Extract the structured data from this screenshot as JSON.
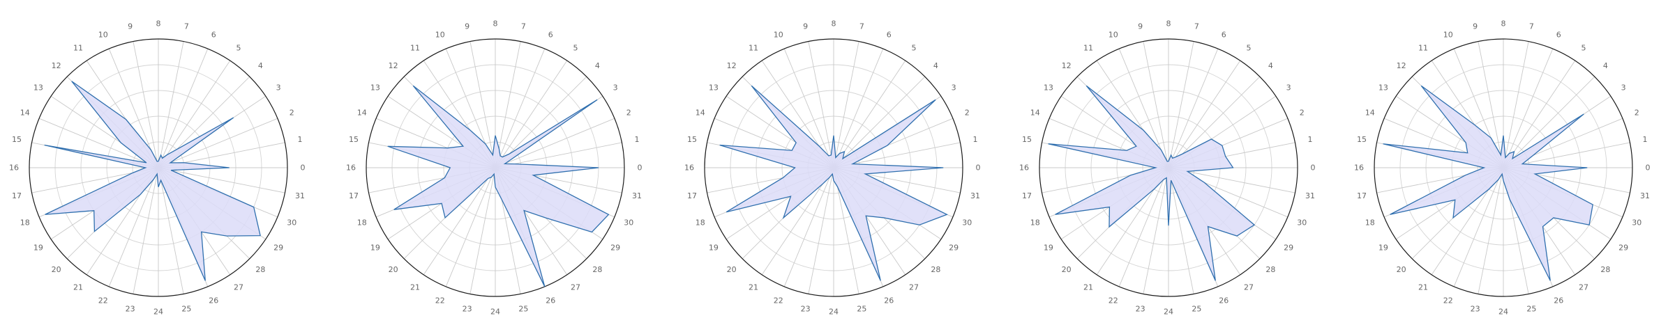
{
  "chart_data": [
    {
      "type": "radar",
      "categories": [
        "0",
        "1",
        "2",
        "3",
        "4",
        "5",
        "6",
        "7",
        "8",
        "9",
        "10",
        "11",
        "12",
        "13",
        "14",
        "15",
        "16",
        "17",
        "18",
        "19",
        "20",
        "21",
        "22",
        "23",
        "24",
        "25",
        "26",
        "27",
        "28",
        "29",
        "30",
        "31"
      ],
      "values": [
        0.55,
        0.2,
        0.1,
        0.7,
        0.2,
        0.12,
        0.08,
        0.1,
        0.05,
        0.05,
        0.15,
        0.45,
        0.95,
        0.35,
        0.1,
        0.9,
        0.1,
        0.2,
        0.95,
        0.6,
        0.7,
        0.25,
        0.1,
        0.05,
        0.15,
        0.1,
        0.95,
        0.6,
        0.75,
        0.95,
        0.8,
        0.1
      ],
      "rlim": [
        0,
        1
      ],
      "grid": true
    },
    {
      "type": "radar",
      "categories": [
        "0",
        "1",
        "2",
        "3",
        "4",
        "5",
        "6",
        "7",
        "8",
        "9",
        "10",
        "11",
        "12",
        "13",
        "14",
        "15",
        "16",
        "17",
        "18",
        "19",
        "20",
        "21",
        "22",
        "23",
        "24",
        "25",
        "26",
        "27",
        "28",
        "29",
        "30",
        "31"
      ],
      "values": [
        0.8,
        0.15,
        0.08,
        0.95,
        0.15,
        0.1,
        0.1,
        0.15,
        0.25,
        0.1,
        0.2,
        0.35,
        0.9,
        0.3,
        0.4,
        0.85,
        0.35,
        0.4,
        0.85,
        0.5,
        0.55,
        0.1,
        0.08,
        0.05,
        0.15,
        0.25,
        1.0,
        0.4,
        0.55,
        0.9,
        0.95,
        0.3
      ],
      "rlim": [
        0,
        1
      ],
      "grid": true
    },
    {
      "type": "radar",
      "categories": [
        "0",
        "1",
        "2",
        "3",
        "4",
        "5",
        "6",
        "7",
        "8",
        "9",
        "10",
        "11",
        "12",
        "13",
        "14",
        "15",
        "16",
        "17",
        "18",
        "19",
        "20",
        "21",
        "22",
        "23",
        "24",
        "25",
        "26",
        "27",
        "28",
        "29",
        "30",
        "31"
      ],
      "values": [
        0.85,
        0.15,
        0.45,
        0.95,
        0.1,
        0.15,
        0.12,
        0.08,
        0.25,
        0.1,
        0.1,
        0.2,
        0.9,
        0.35,
        0.35,
        0.9,
        0.3,
        0.4,
        0.9,
        0.4,
        0.55,
        0.15,
        0.08,
        0.05,
        0.1,
        0.15,
        0.95,
        0.45,
        0.55,
        0.8,
        0.95,
        0.25
      ],
      "rlim": [
        0,
        1
      ],
      "grid": true
    },
    {
      "type": "radar",
      "categories": [
        "0",
        "1",
        "2",
        "3",
        "4",
        "5",
        "6",
        "7",
        "8",
        "9",
        "10",
        "11",
        "12",
        "13",
        "14",
        "15",
        "16",
        "17",
        "18",
        "19",
        "20",
        "21",
        "22",
        "23",
        "24",
        "25",
        "26",
        "27",
        "28",
        "29",
        "30",
        "31"
      ],
      "values": [
        0.5,
        0.45,
        0.45,
        0.4,
        0.15,
        0.1,
        0.08,
        0.1,
        0.05,
        0.05,
        0.15,
        0.35,
        0.9,
        0.3,
        0.35,
        0.95,
        0.1,
        0.3,
        0.95,
        0.55,
        0.65,
        0.2,
        0.1,
        0.08,
        0.45,
        0.1,
        0.95,
        0.55,
        0.75,
        0.8,
        0.3,
        0.15
      ],
      "rlim": [
        0,
        1
      ],
      "grid": true
    },
    {
      "type": "radar",
      "categories": [
        "0",
        "1",
        "2",
        "3",
        "4",
        "5",
        "6",
        "7",
        "8",
        "9",
        "10",
        "11",
        "12",
        "13",
        "14",
        "15",
        "16",
        "17",
        "18",
        "19",
        "20",
        "21",
        "22",
        "23",
        "24",
        "25",
        "26",
        "27",
        "28",
        "29",
        "30",
        "31"
      ],
      "values": [
        0.65,
        0.15,
        0.25,
        0.75,
        0.1,
        0.15,
        0.12,
        0.08,
        0.25,
        0.1,
        0.25,
        0.4,
        0.9,
        0.35,
        0.3,
        0.95,
        0.15,
        0.3,
        0.95,
        0.45,
        0.55,
        0.2,
        0.1,
        0.05,
        0.1,
        0.25,
        0.95,
        0.55,
        0.55,
        0.8,
        0.75,
        0.25
      ],
      "rlim": [
        0,
        1
      ],
      "grid": true
    }
  ],
  "style": {
    "line_color": "#2f6fae",
    "fill_color": "#dcdcf8",
    "grid_color": "#d4d4d4",
    "frame_color": "#1a1a1a",
    "label_color": "#666666"
  }
}
